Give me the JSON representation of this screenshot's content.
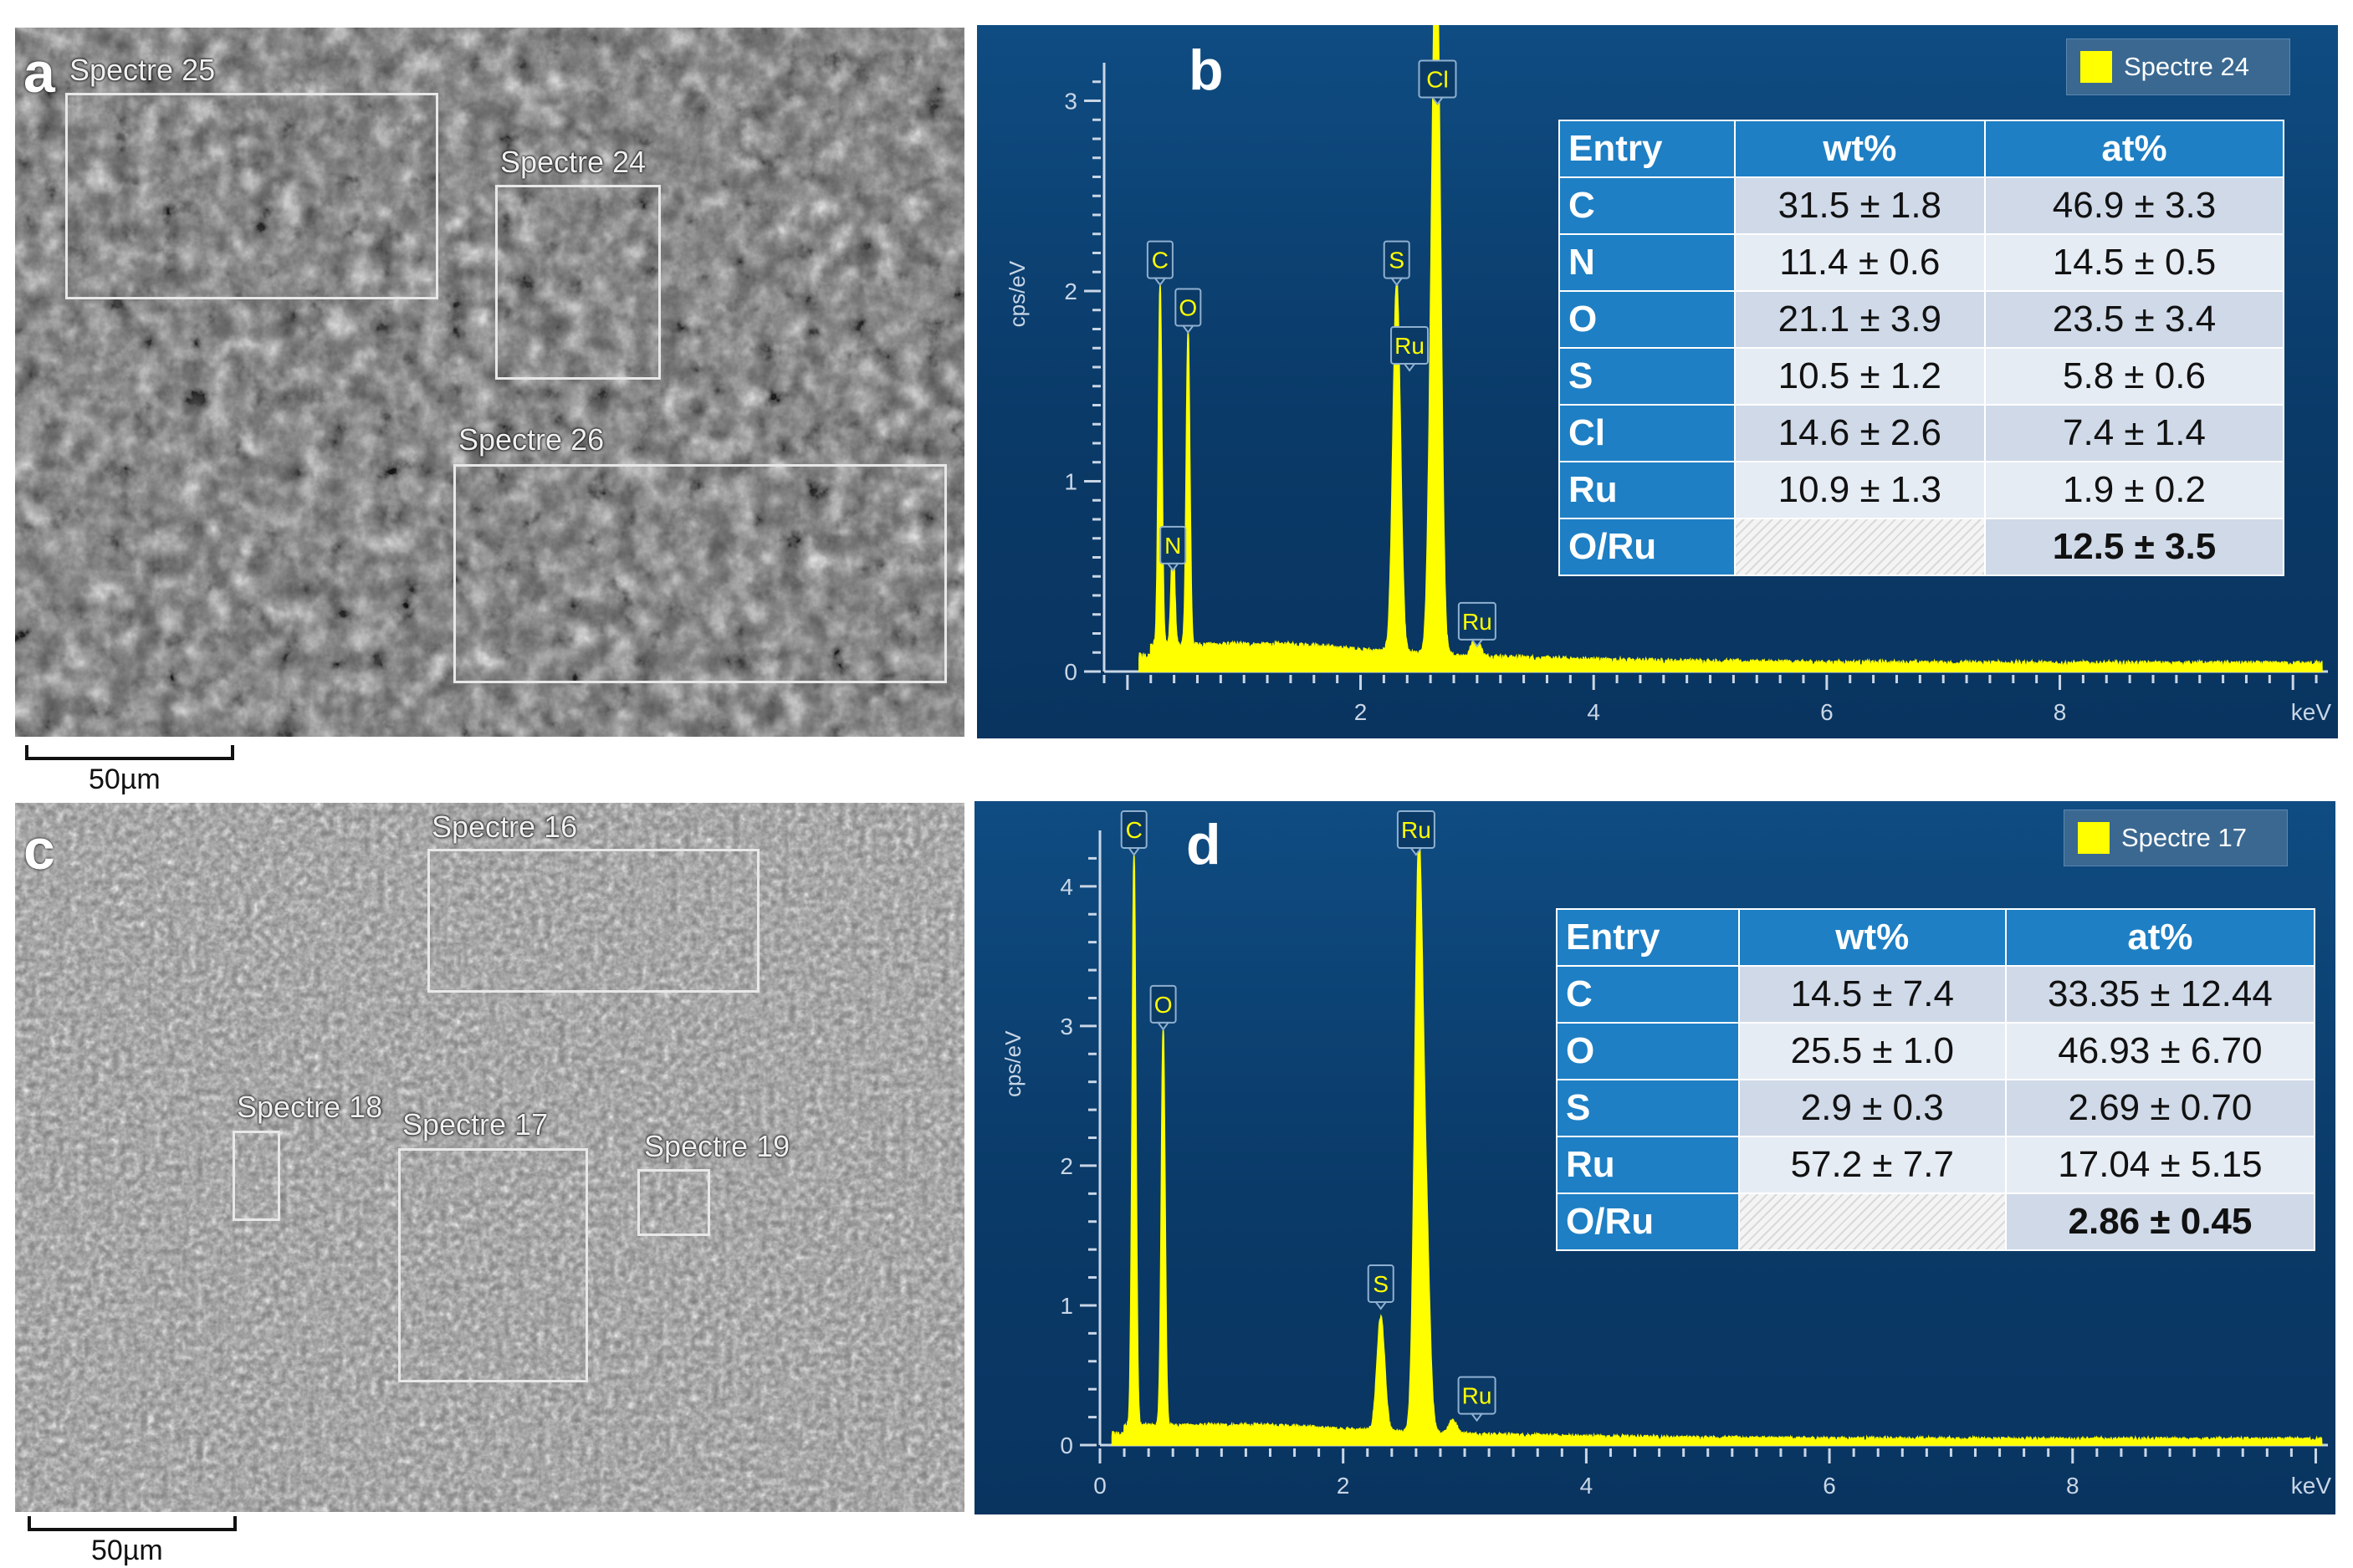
{
  "panel_a": {
    "letter": "a",
    "rois": [
      {
        "label": "Spectre 25"
      },
      {
        "label": "Spectre 24"
      },
      {
        "label": "Spectre 26"
      }
    ],
    "scalebar": "50µm"
  },
  "panel_b": {
    "letter": "b",
    "legend": "Spectre 24",
    "table": {
      "headers": [
        "Entry",
        "wt%",
        "at%"
      ],
      "rows": [
        [
          "C",
          "31.5 ± 1.8",
          "46.9 ± 3.3"
        ],
        [
          "N",
          "11.4 ± 0.6",
          "14.5 ± 0.5"
        ],
        [
          "O",
          "21.1 ± 3.9",
          "23.5 ± 3.4"
        ],
        [
          "S",
          "10.5 ± 1.2",
          "5.8 ± 0.6"
        ],
        [
          "Cl",
          "14.6 ± 2.6",
          "7.4 ± 1.4"
        ],
        [
          "Ru",
          "10.9 ± 1.3",
          "1.9 ± 0.2"
        ],
        [
          "O/Ru",
          "",
          "12.5 ± 3.5"
        ]
      ]
    }
  },
  "panel_c": {
    "letter": "c",
    "rois": [
      {
        "label": "Spectre 16"
      },
      {
        "label": "Spectre 18"
      },
      {
        "label": "Spectre 17"
      },
      {
        "label": "Spectre 19"
      }
    ],
    "scalebar": "50µm"
  },
  "panel_d": {
    "letter": "d",
    "legend": "Spectre 17",
    "table": {
      "headers": [
        "Entry",
        "wt%",
        "at%"
      ],
      "rows": [
        [
          "C",
          "14.5 ± 7.4",
          "33.35 ± 12.44"
        ],
        [
          "O",
          "25.5 ± 1.0",
          "46.93 ± 6.70"
        ],
        [
          "S",
          "2.9 ± 0.3",
          "2.69 ± 0.70"
        ],
        [
          "Ru",
          "57.2 ± 7.7",
          "17.04 ± 5.15"
        ],
        [
          "O/Ru",
          "",
          "2.86 ± 0.45"
        ]
      ]
    }
  },
  "chart_data": [
    {
      "id": "b",
      "type": "line",
      "xlabel": "keV",
      "ylabel": "cps/eV",
      "xlim": [
        -0.2,
        10.3
      ],
      "ylim": [
        0,
        3.2
      ],
      "xticks": [
        "2",
        "4",
        "6",
        "8"
      ],
      "xtick_values": [
        2,
        4,
        6,
        8
      ],
      "yticks": [
        "0",
        "1",
        "2",
        "3"
      ],
      "ytick_values": [
        0,
        1,
        2,
        3
      ],
      "series": [
        {
          "color": "#ffff00",
          "baseline": 0.1,
          "peaks": [
            [
              0.28,
              1.9
            ],
            [
              0.39,
              0.55
            ],
            [
              0.52,
              1.65
            ],
            [
              2.31,
              1.95
            ],
            [
              2.62,
              1.65
            ],
            [
              2.66,
              2.9
            ],
            [
              2.99,
              0.12
            ]
          ]
        }
      ],
      "peak_labels": [
        {
          "label": "C",
          "x": 0.28,
          "y": 2.05
        },
        {
          "label": "O",
          "x": 0.52,
          "y": 1.8
        },
        {
          "label": "N",
          "x": 0.39,
          "y": 0.55
        },
        {
          "label": "S",
          "x": 2.31,
          "y": 2.05
        },
        {
          "label": "Ru",
          "x": 2.42,
          "y": 1.6
        },
        {
          "label": "Cl",
          "x": 2.66,
          "y": 3.0
        },
        {
          "label": "Ru",
          "x": 3.0,
          "y": 0.15
        }
      ]
    },
    {
      "id": "d",
      "type": "line",
      "xlabel": "keV",
      "ylabel": "cps/eV",
      "xlim": [
        0,
        10.1
      ],
      "ylim": [
        0,
        4.4
      ],
      "xticks": [
        "0",
        "2",
        "4",
        "6",
        "8"
      ],
      "xtick_values": [
        0,
        2,
        4,
        6,
        8
      ],
      "yticks": [
        "0",
        "1",
        "2",
        "3",
        "4"
      ],
      "ytick_values": [
        0,
        1,
        2,
        3,
        4
      ],
      "series": [
        {
          "color": "#ffff00",
          "baseline": 0.1,
          "peaks": [
            [
              0.28,
              4.1
            ],
            [
              0.52,
              2.85
            ],
            [
              2.31,
              0.82
            ],
            [
              2.62,
              4.0
            ],
            [
              2.68,
              1.4
            ],
            [
              2.9,
              0.1
            ]
          ]
        }
      ],
      "peak_labels": [
        {
          "label": "C",
          "x": 0.28,
          "y": 4.25
        },
        {
          "label": "O",
          "x": 0.52,
          "y": 3.0
        },
        {
          "label": "S",
          "x": 2.31,
          "y": 1.0
        },
        {
          "label": "Ru",
          "x": 2.6,
          "y": 4.25
        },
        {
          "label": "Ru",
          "x": 3.1,
          "y": 0.2
        }
      ]
    }
  ]
}
